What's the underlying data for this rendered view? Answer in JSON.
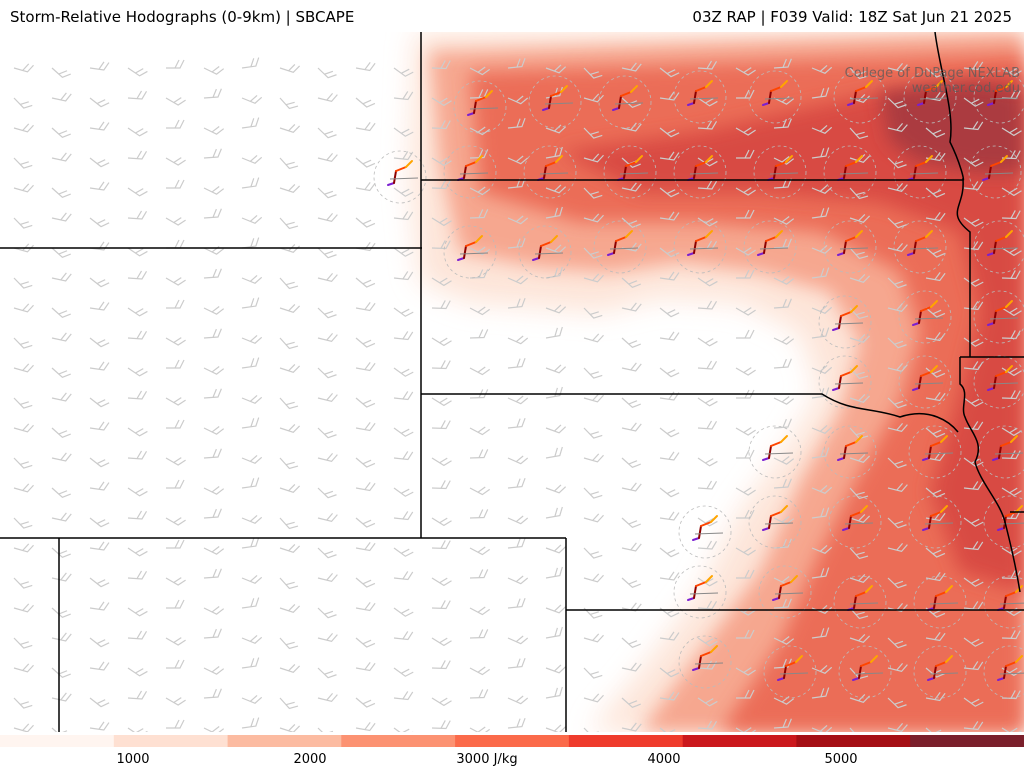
{
  "header": {
    "title_left": "Storm-Relative Hodographs (0-9km) | SBCAPE",
    "title_right": "03Z RAP | F039 Valid: 18Z Sat Jun 21 2025"
  },
  "credit": {
    "line1": "College of DuPage NEXLAB",
    "line2": "weather.cod.edu"
  },
  "colorbar": {
    "unit": "J/kg",
    "labels": [
      "1000",
      "2000",
      "3000 J/kg",
      "4000",
      "5000"
    ],
    "colors": [
      "#fff5f0",
      "#fee0d2",
      "#fcbba1",
      "#fc9272",
      "#fb6a4a",
      "#ef3b2c",
      "#cb181d",
      "#a50f15",
      "#7a1f2b"
    ]
  },
  "map": {
    "fill_colors": {
      "light": "#fde3d6",
      "mid": "#f6a48c",
      "high": "#eb6a55",
      "very_high": "#d84a42",
      "max": "#a93a3f"
    },
    "barb_color": "#cccccc",
    "border_color": "#000000",
    "hodo_colors": [
      "#7b1fd1",
      "#8b0000",
      "#ff4500",
      "#ffa500"
    ]
  }
}
